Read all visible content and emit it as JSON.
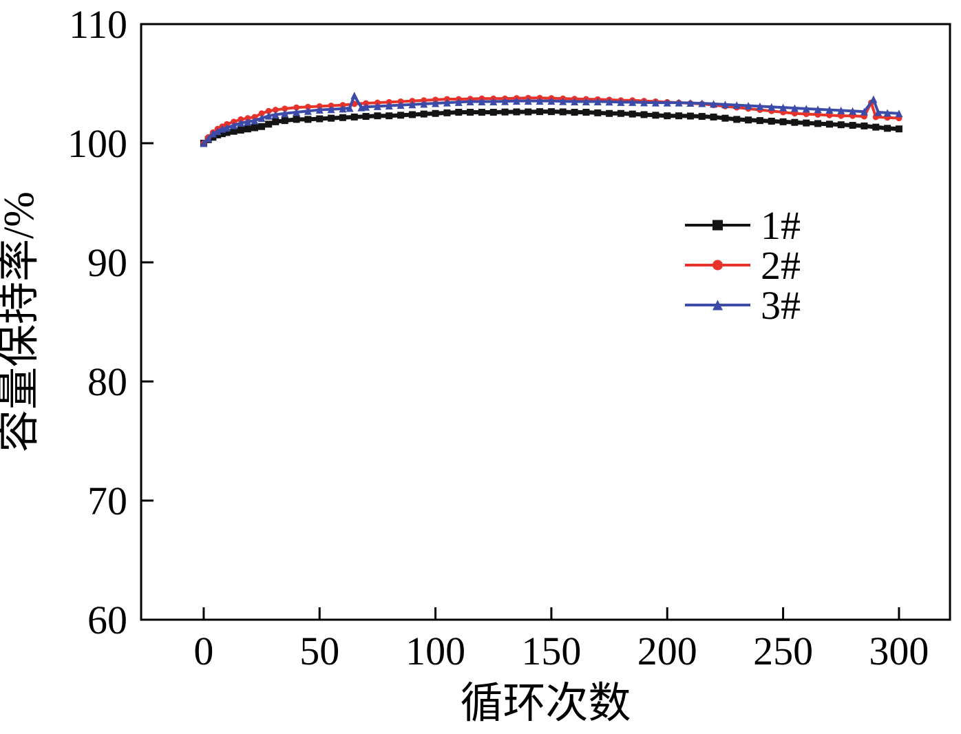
{
  "chart_data": {
    "type": "line",
    "title": "",
    "xlabel": "循环次数",
    "ylabel": "容量保持率/%",
    "xlim": [
      -27,
      322
    ],
    "ylim": [
      60,
      110
    ],
    "xticks": [
      0,
      50,
      100,
      150,
      200,
      250,
      300
    ],
    "yticks": [
      60,
      70,
      80,
      90,
      100,
      110
    ],
    "grid": false,
    "legend_position": "center-right",
    "series": [
      {
        "name": "1#",
        "color": "#141414",
        "marker": "square",
        "line_width": 6,
        "marker_size": 10,
        "x": [
          0,
          2,
          4,
          6,
          8,
          10,
          13,
          16,
          19,
          22,
          25,
          28,
          31,
          35,
          40,
          45,
          50,
          55,
          60,
          65,
          70,
          75,
          80,
          85,
          90,
          95,
          100,
          105,
          110,
          115,
          120,
          125,
          130,
          135,
          140,
          145,
          150,
          155,
          160,
          165,
          170,
          175,
          180,
          185,
          190,
          195,
          200,
          205,
          210,
          215,
          220,
          225,
          230,
          235,
          240,
          245,
          250,
          255,
          260,
          265,
          270,
          275,
          280,
          285,
          290,
          295,
          300
        ],
        "y": [
          100.0,
          100.3,
          100.5,
          100.7,
          100.8,
          100.9,
          101.0,
          101.1,
          101.2,
          101.3,
          101.4,
          101.6,
          101.8,
          101.9,
          102.0,
          102.0,
          102.05,
          102.1,
          102.15,
          102.2,
          102.25,
          102.3,
          102.3,
          102.35,
          102.4,
          102.45,
          102.5,
          102.55,
          102.6,
          102.6,
          102.6,
          102.6,
          102.62,
          102.63,
          102.63,
          102.65,
          102.65,
          102.63,
          102.6,
          102.6,
          102.55,
          102.5,
          102.5,
          102.45,
          102.4,
          102.35,
          102.3,
          102.3,
          102.28,
          102.25,
          102.2,
          102.1,
          102.0,
          101.95,
          101.9,
          101.85,
          101.8,
          101.75,
          101.7,
          101.65,
          101.6,
          101.55,
          101.5,
          101.45,
          101.35,
          101.25,
          101.2
        ]
      },
      {
        "name": "2#",
        "color": "#e8332a",
        "marker": "circle",
        "line_width": 4,
        "marker_size": 9,
        "x": [
          0,
          2,
          4,
          6,
          8,
          10,
          13,
          16,
          19,
          22,
          25,
          28,
          31,
          35,
          40,
          45,
          50,
          55,
          60,
          65,
          70,
          75,
          80,
          85,
          90,
          95,
          100,
          105,
          110,
          115,
          120,
          125,
          130,
          135,
          140,
          145,
          150,
          155,
          160,
          165,
          170,
          175,
          180,
          185,
          190,
          195,
          200,
          205,
          210,
          215,
          220,
          225,
          230,
          235,
          240,
          245,
          250,
          255,
          260,
          265,
          270,
          275,
          280,
          285,
          288,
          290,
          295,
          300
        ],
        "y": [
          100.0,
          100.5,
          100.9,
          101.2,
          101.4,
          101.6,
          101.8,
          102.0,
          102.1,
          102.2,
          102.5,
          102.7,
          102.8,
          102.9,
          103.0,
          103.05,
          103.1,
          103.15,
          103.2,
          103.3,
          103.35,
          103.4,
          103.45,
          103.5,
          103.55,
          103.6,
          103.65,
          103.7,
          103.7,
          103.72,
          103.75,
          103.75,
          103.75,
          103.78,
          103.8,
          103.8,
          103.78,
          103.75,
          103.72,
          103.7,
          103.68,
          103.65,
          103.6,
          103.6,
          103.55,
          103.5,
          103.45,
          103.4,
          103.35,
          103.3,
          103.2,
          103.1,
          103.0,
          102.9,
          102.8,
          102.7,
          102.6,
          102.5,
          102.45,
          102.4,
          102.35,
          102.3,
          102.3,
          102.25,
          103.4,
          102.2,
          102.15,
          102.1
        ]
      },
      {
        "name": "3#",
        "color": "#3c4ba8",
        "marker": "triangle",
        "line_width": 4,
        "marker_size": 11,
        "x": [
          0,
          2,
          4,
          6,
          8,
          10,
          13,
          16,
          19,
          22,
          25,
          28,
          31,
          35,
          40,
          45,
          50,
          55,
          60,
          63,
          65,
          68,
          70,
          75,
          80,
          85,
          90,
          95,
          100,
          105,
          110,
          115,
          120,
          125,
          130,
          135,
          140,
          145,
          150,
          155,
          160,
          165,
          170,
          175,
          180,
          185,
          190,
          195,
          200,
          205,
          210,
          215,
          220,
          225,
          230,
          235,
          240,
          245,
          250,
          255,
          260,
          265,
          270,
          275,
          280,
          285,
          289,
          291,
          295,
          300
        ],
        "y": [
          100.0,
          100.4,
          100.8,
          101.0,
          101.2,
          101.3,
          101.5,
          101.7,
          101.8,
          101.9,
          102.1,
          102.3,
          102.4,
          102.5,
          102.6,
          102.7,
          102.8,
          102.85,
          102.9,
          102.95,
          104.0,
          103.0,
          103.05,
          103.1,
          103.15,
          103.2,
          103.25,
          103.3,
          103.35,
          103.4,
          103.45,
          103.5,
          103.5,
          103.5,
          103.52,
          103.55,
          103.55,
          103.55,
          103.55,
          103.52,
          103.5,
          103.5,
          103.5,
          103.48,
          103.45,
          103.45,
          103.42,
          103.4,
          103.4,
          103.4,
          103.38,
          103.35,
          103.3,
          103.25,
          103.2,
          103.15,
          103.1,
          103.05,
          103.0,
          102.95,
          102.9,
          102.85,
          102.8,
          102.75,
          102.7,
          102.65,
          103.7,
          102.6,
          102.55,
          102.5
        ]
      }
    ]
  }
}
